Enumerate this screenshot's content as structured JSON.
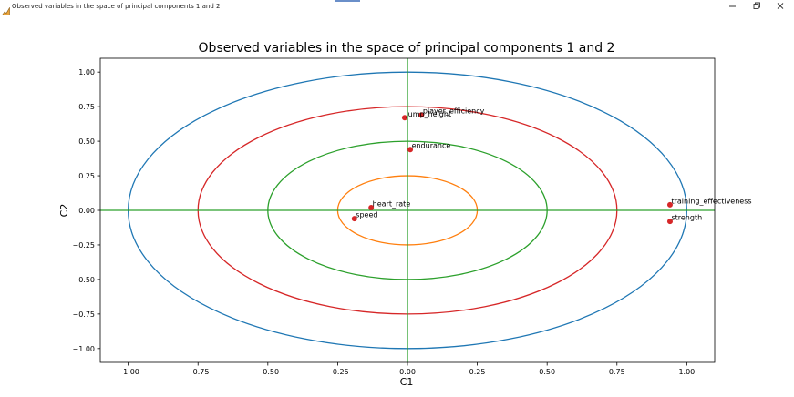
{
  "window": {
    "title": "Observed variables in the space of principal components 1 and 2",
    "icon": "figure-icon",
    "controls": [
      "minimize-icon",
      "restore-icon",
      "close-icon"
    ]
  },
  "chart_data": {
    "type": "scatter",
    "title": "Observed variables in the space of principal components 1 and 2",
    "xlabel": "C1",
    "ylabel": "C2",
    "xlim": [
      -1.1,
      1.1
    ],
    "ylim": [
      -1.1,
      1.1
    ],
    "xticks": [
      -1.0,
      -0.75,
      -0.5,
      -0.25,
      0.0,
      0.25,
      0.5,
      0.75,
      1.0
    ],
    "yticks": [
      -1.0,
      -0.75,
      -0.5,
      -0.25,
      0.0,
      0.25,
      0.5,
      0.75,
      1.0
    ],
    "xtick_labels": [
      "−1.00",
      "−0.75",
      "−0.50",
      "−0.25",
      "0.00",
      "0.25",
      "0.50",
      "0.75",
      "1.00"
    ],
    "ytick_labels": [
      "−1.00",
      "−0.75",
      "−0.50",
      "−0.25",
      "0.00",
      "0.25",
      "0.50",
      "0.75",
      "1.00"
    ],
    "grid": false,
    "circles": [
      {
        "radius": 1.0,
        "color": "#1f77b4"
      },
      {
        "radius": 0.75,
        "color": "#d62728"
      },
      {
        "radius": 0.5,
        "color": "#2ca02c"
      },
      {
        "radius": 0.25,
        "color": "#ff7f0e"
      }
    ],
    "axis_lines_color": "#2ca02c",
    "point_color": "#d62728",
    "points": [
      {
        "label": "player_efficiency",
        "x": 0.05,
        "y": 0.69
      },
      {
        "label": "jump_height",
        "x": -0.01,
        "y": 0.67
      },
      {
        "label": "endurance",
        "x": 0.01,
        "y": 0.44
      },
      {
        "label": "heart_rate",
        "x": -0.13,
        "y": 0.02
      },
      {
        "label": "speed",
        "x": -0.19,
        "y": -0.06
      },
      {
        "label": "training_effectiveness",
        "x": 0.94,
        "y": 0.04
      },
      {
        "label": "strength",
        "x": 0.94,
        "y": -0.08
      }
    ]
  }
}
